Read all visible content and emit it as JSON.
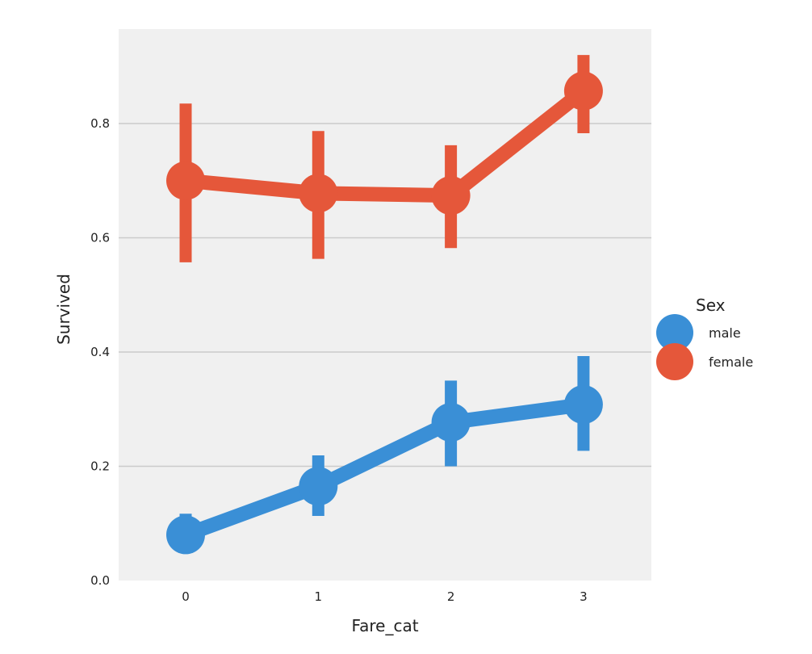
{
  "chart_data": {
    "type": "line",
    "title": "",
    "xlabel": "Fare_cat",
    "ylabel": "Survived",
    "categories": [
      "0",
      "1",
      "2",
      "3"
    ],
    "ylim": [
      0.0,
      0.95
    ],
    "yticks": [
      0.0,
      0.2,
      0.4,
      0.6,
      0.8
    ],
    "ytick_labels": [
      "0.0",
      "0.2",
      "0.4",
      "0.6",
      "0.8"
    ],
    "grid": "horizontal",
    "legend": {
      "title": "Sex",
      "placement": "right"
    },
    "series": [
      {
        "name": "male",
        "color": "#3a8fd6",
        "values": [
          0.08,
          0.165,
          0.277,
          0.308
        ],
        "ci_low": [
          0.06,
          0.113,
          0.2,
          0.227
        ],
        "ci_high": [
          0.117,
          0.219,
          0.35,
          0.393
        ]
      },
      {
        "name": "female",
        "color": "#e5573a",
        "values": [
          0.7,
          0.678,
          0.674,
          0.857
        ],
        "ci_low": [
          0.557,
          0.563,
          0.582,
          0.783
        ],
        "ci_high": [
          0.835,
          0.787,
          0.762,
          0.92
        ]
      }
    ],
    "background": "#f0f0f0",
    "gridline_color": "#cbcbcb"
  }
}
